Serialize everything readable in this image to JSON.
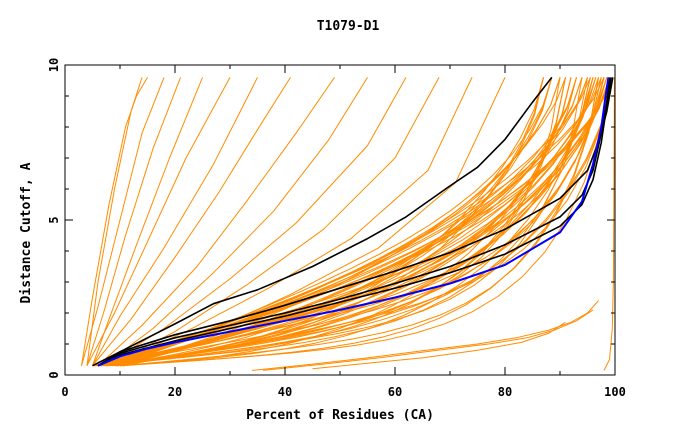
{
  "chart_data": {
    "type": "line",
    "title": "T1079-D1",
    "xlabel": "Percent of Residues (CA)",
    "ylabel": "Distance Cutoff, A",
    "xlim": [
      0,
      100
    ],
    "ylim": [
      0,
      10
    ],
    "x_ticks": [
      0,
      20,
      40,
      60,
      80,
      100
    ],
    "x_tick_labels": [
      "0",
      "20",
      "40",
      "60",
      "80",
      "100"
    ],
    "y_ticks": [
      0,
      5,
      10
    ],
    "y_tick_labels": [
      "0",
      "5",
      "10"
    ],
    "grid": false,
    "legend": "none",
    "colors": {
      "models": "#ff8c00",
      "reference": "#000000",
      "highlight": "#0000ff"
    },
    "highlight_series": {
      "x": [
        6,
        10,
        15,
        20,
        30,
        40,
        50,
        60,
        70,
        80,
        90,
        94,
        96,
        97.5,
        98.3,
        98.8
      ],
      "y": [
        0.3,
        0.6,
        0.85,
        1.05,
        1.4,
        1.75,
        2.1,
        2.5,
        2.95,
        3.55,
        4.6,
        5.6,
        6.8,
        8.0,
        9.0,
        9.6
      ]
    },
    "reference_series": [
      {
        "x": [
          5,
          10,
          15,
          20,
          27,
          35,
          45,
          55,
          62,
          70,
          75,
          80,
          85,
          88.5
        ],
        "y": [
          0.3,
          0.75,
          1.2,
          1.65,
          2.3,
          2.75,
          3.5,
          4.4,
          5.1,
          6.1,
          6.7,
          7.6,
          8.8,
          9.6
        ]
      },
      {
        "x": [
          6,
          10,
          20,
          30,
          40,
          50,
          60,
          70,
          80,
          90,
          94,
          96,
          97.5,
          98.5,
          99
        ],
        "y": [
          0.3,
          0.7,
          1.2,
          1.6,
          2.0,
          2.45,
          2.95,
          3.5,
          4.2,
          5.1,
          5.8,
          6.6,
          7.8,
          8.8,
          9.6
        ]
      },
      {
        "x": [
          6,
          10,
          20,
          30,
          40,
          50,
          60,
          70,
          80,
          90,
          94,
          96,
          97.5,
          98.5,
          99.3
        ],
        "y": [
          0.3,
          0.65,
          1.1,
          1.5,
          1.9,
          2.35,
          2.8,
          3.3,
          3.9,
          4.8,
          5.5,
          6.3,
          7.5,
          8.7,
          9.6
        ]
      },
      {
        "x": [
          6,
          10,
          20,
          30,
          40,
          50,
          60,
          70,
          80,
          90,
          95,
          97,
          98.5,
          99.2,
          99.6
        ],
        "y": [
          0.3,
          0.75,
          1.3,
          1.75,
          2.25,
          2.8,
          3.35,
          3.95,
          4.7,
          5.7,
          6.6,
          7.5,
          8.5,
          9.2,
          9.6
        ]
      }
    ],
    "model_series": {
      "steep": [
        {
          "x": [
            3,
            5,
            8,
            11,
            13,
            15
          ],
          "y": [
            0.3,
            2.5,
            5.5,
            8.0,
            9.0,
            9.6
          ]
        },
        {
          "x": [
            4,
            6,
            9,
            12,
            14
          ],
          "y": [
            0.3,
            3.0,
            6.0,
            8.5,
            9.6
          ]
        },
        {
          "x": [
            3,
            6,
            10,
            14,
            18
          ],
          "y": [
            0.3,
            2.2,
            5.0,
            7.8,
            9.6
          ]
        },
        {
          "x": [
            4,
            7,
            11,
            16,
            21
          ],
          "y": [
            0.3,
            2.0,
            4.5,
            7.3,
            9.6
          ]
        },
        {
          "x": [
            5,
            8,
            13,
            19,
            25
          ],
          "y": [
            0.3,
            1.8,
            4.2,
            7.0,
            9.6
          ]
        },
        {
          "x": [
            4,
            9,
            15,
            22,
            30
          ],
          "y": [
            0.3,
            2.0,
            4.3,
            7.0,
            9.6
          ]
        },
        {
          "x": [
            5,
            10,
            18,
            27,
            35
          ],
          "y": [
            0.3,
            1.9,
            4.1,
            6.8,
            9.6
          ]
        },
        {
          "x": [
            5,
            12,
            20,
            28,
            36,
            41
          ],
          "y": [
            0.3,
            1.8,
            3.8,
            5.9,
            8.2,
            9.6
          ]
        },
        {
          "x": [
            6,
            14,
            24,
            33,
            42,
            49
          ],
          "y": [
            0.3,
            1.6,
            3.5,
            5.6,
            7.8,
            9.6
          ]
        },
        {
          "x": [
            7,
            16,
            27,
            38,
            48,
            55
          ],
          "y": [
            0.3,
            1.5,
            3.3,
            5.3,
            7.6,
            9.6
          ]
        },
        {
          "x": [
            7,
            18,
            30,
            42,
            55,
            62
          ],
          "y": [
            0.3,
            1.5,
            3.1,
            4.9,
            7.4,
            9.6
          ]
        },
        {
          "x": [
            8,
            20,
            33,
            47,
            60,
            68
          ],
          "y": [
            0.3,
            1.4,
            2.9,
            4.7,
            7.0,
            9.6
          ]
        },
        {
          "x": [
            8,
            22,
            37,
            52,
            66,
            74
          ],
          "y": [
            0.3,
            1.4,
            2.8,
            4.4,
            6.6,
            9.6
          ]
        },
        {
          "x": [
            9,
            25,
            41,
            57,
            71,
            80
          ],
          "y": [
            0.3,
            1.3,
            2.6,
            4.1,
            6.2,
            9.6
          ]
        }
      ],
      "bulk_endpoints": [
        87,
        88.5,
        90,
        91,
        92,
        93,
        94,
        95,
        95.5,
        96,
        96.5,
        97,
        97.5,
        98,
        98.5,
        99,
        99.3,
        99.6
      ],
      "bulk_start_x": [
        5,
        5.5,
        6,
        6.5,
        7,
        7.5,
        8,
        8.5,
        9,
        9.5,
        10,
        10.5
      ],
      "bottom": [
        {
          "x": [
            34,
            45,
            55,
            65,
            75,
            82,
            88,
            92,
            95,
            97
          ],
          "y": [
            0.15,
            0.35,
            0.55,
            0.78,
            1.0,
            1.2,
            1.45,
            1.7,
            2.0,
            2.4
          ]
        },
        {
          "x": [
            36,
            47,
            57,
            67,
            77,
            84,
            89,
            93,
            96
          ],
          "y": [
            0.15,
            0.35,
            0.55,
            0.78,
            1.0,
            1.2,
            1.45,
            1.75,
            2.1
          ]
        },
        {
          "x": [
            45,
            55,
            65,
            75,
            83,
            88,
            91
          ],
          "y": [
            0.2,
            0.38,
            0.55,
            0.8,
            1.05,
            1.35,
            1.7
          ]
        },
        {
          "x": [
            98,
            99,
            99.5,
            99.7,
            99.8,
            99.9
          ],
          "y": [
            0.15,
            0.5,
            1.5,
            3.0,
            6.0,
            9.6
          ]
        }
      ]
    }
  }
}
